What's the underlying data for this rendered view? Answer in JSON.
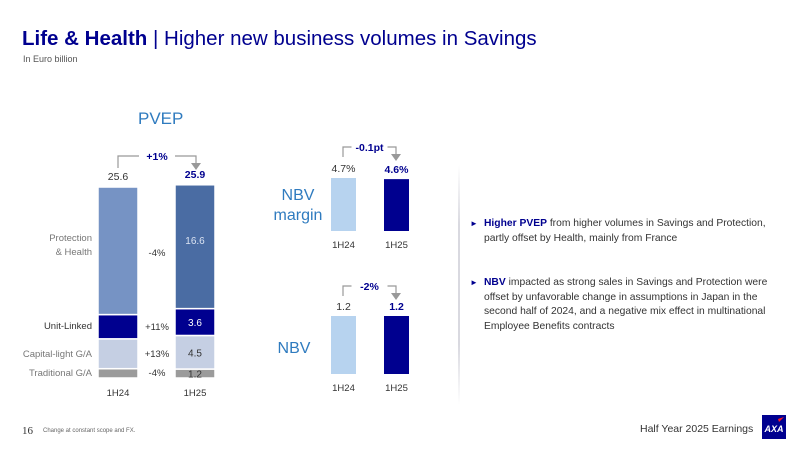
{
  "header": {
    "title_bold": "Life & Health",
    "title_sep": " | ",
    "title_rest": "Higher new business volumes in Savings",
    "subtitle": "In Euro billion"
  },
  "pvep": {
    "title": "PVEP",
    "change_label": "+1%",
    "segments": [
      "Protection & Health",
      "Unit-Linked",
      "Capital-light G/A",
      "Traditional G/A"
    ],
    "segment_labels": [
      "Protection\n& Health",
      "Unit-Linked",
      "Capital-light G/A",
      "Traditional G/A"
    ],
    "segment_changes": [
      "-4%",
      "+11%",
      "+13%",
      "-4%"
    ],
    "periods": [
      "1H24",
      "1H25"
    ],
    "totals": [
      "25.6",
      "25.9"
    ],
    "value_labels_1H25": [
      "16.6",
      "3.6",
      "4.5",
      "1.2"
    ],
    "colors_1H24": [
      "#7693c4",
      "#00008f",
      "#c5cfe3",
      "#9b9b9b"
    ],
    "colors_1H25": [
      "#4a6ca3",
      "#00008f",
      "#c5cfe3",
      "#9b9b9b"
    ]
  },
  "nbv_margin": {
    "label": "NBV margin",
    "label_lines": [
      "NBV",
      "margin"
    ],
    "change_label": "-0.1pt",
    "periods": [
      "1H24",
      "1H25"
    ],
    "value_labels": [
      "4.7%",
      "4.6%"
    ]
  },
  "nbv": {
    "label": "NBV",
    "change_label": "-2%",
    "periods": [
      "1H24",
      "1H25"
    ],
    "value_labels": [
      "1.2",
      "1.2"
    ]
  },
  "chart_data": [
    {
      "type": "bar",
      "title": "PVEP",
      "stacked": true,
      "categories": [
        "1H24",
        "1H25"
      ],
      "series": [
        {
          "name": "Traditional G/A",
          "values": [
            1.25,
            1.2
          ]
        },
        {
          "name": "Capital-light G/A",
          "values": [
            4.0,
            4.5
          ]
        },
        {
          "name": "Unit-Linked",
          "values": [
            3.25,
            3.6
          ]
        },
        {
          "name": "Protection & Health",
          "values": [
            17.1,
            16.6
          ]
        }
      ],
      "totals": [
        25.6,
        25.9
      ],
      "ylim": [
        0,
        26
      ]
    },
    {
      "type": "bar",
      "title": "NBV margin",
      "categories": [
        "1H24",
        "1H25"
      ],
      "values": [
        4.7,
        4.6
      ],
      "ylim": [
        0,
        4.7
      ]
    },
    {
      "type": "bar",
      "title": "NBV",
      "categories": [
        "1H24",
        "1H25"
      ],
      "values": [
        1.2,
        1.2
      ],
      "ylim": [
        0,
        1.2
      ]
    }
  ],
  "bullets": [
    {
      "bold": "Higher PVEP",
      "text": " from higher volumes in Savings and Protection, partly offset by Health, mainly from France"
    },
    {
      "bold": "NBV",
      "text": " impacted as strong sales in Savings and Protection were offset by unfavorable change in assumptions in Japan in the second half of 2024, and a negative mix effect in multinational Employee Benefits contracts"
    }
  ],
  "footer": {
    "page_number": "16",
    "footnote": "Change at constant scope and FX.",
    "right_text": "Half Year 2025 Earnings",
    "logo_text": "AXA"
  },
  "colors": {
    "axa_blue": "#00008f",
    "accent_blue": "#2f7bbf",
    "light_bar": "#b7d3ef"
  }
}
